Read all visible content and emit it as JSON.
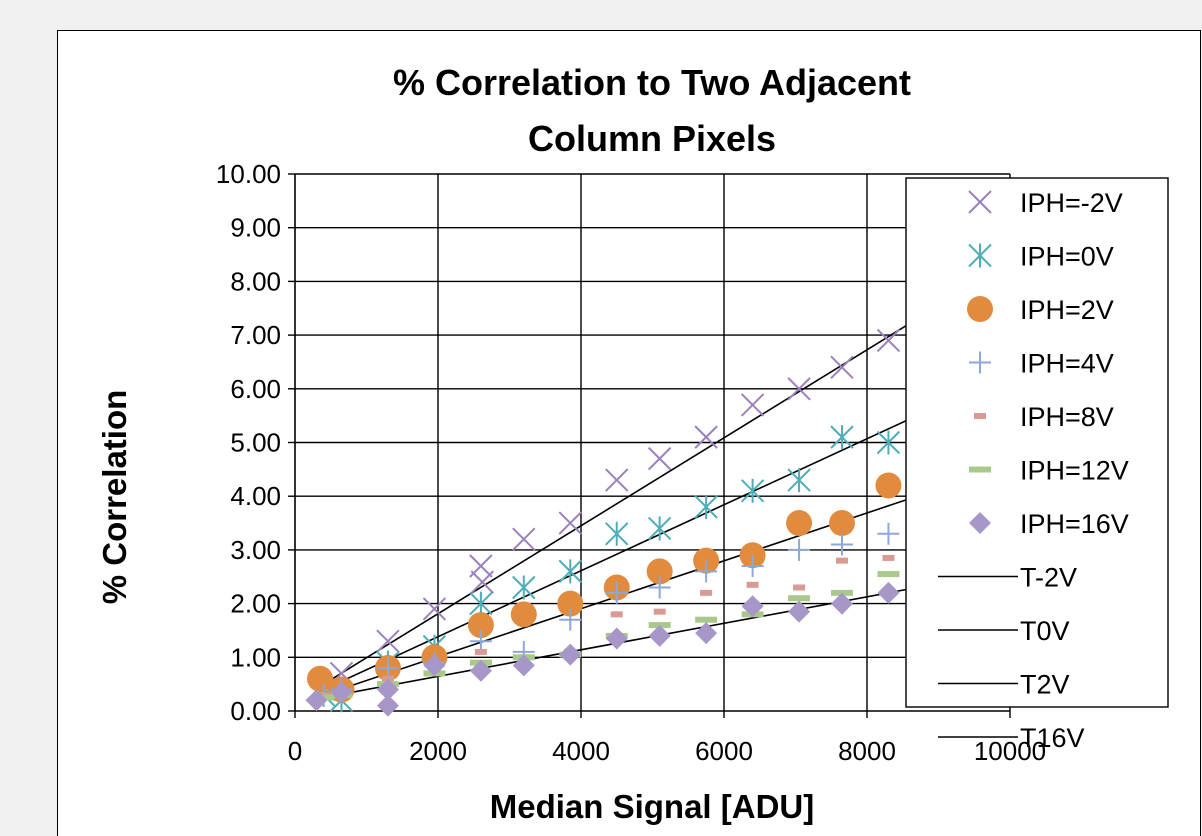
{
  "chart_data": {
    "type": "scatter",
    "title_lines": [
      "% Correlation to Two Adjacent",
      "Column Pixels"
    ],
    "xlabel": "Median Signal [ADU]",
    "ylabel": "% Correlation",
    "xlim": [
      0,
      10000
    ],
    "ylim": [
      0,
      10
    ],
    "x_ticks": [
      "0",
      "2000",
      "4000",
      "6000",
      "8000",
      "10000"
    ],
    "y_ticks": [
      "0.00",
      "1.00",
      "2.00",
      "3.00",
      "4.00",
      "5.00",
      "6.00",
      "7.00",
      "8.00",
      "9.00",
      "10.00"
    ],
    "grid": true,
    "legend_position": "right",
    "series": [
      {
        "name": "IPH=-2V",
        "marker": "x",
        "color": "#9b82bd",
        "x": [
          400,
          650,
          1300,
          1950,
          2600,
          2620,
          3200,
          3850,
          4500,
          5100,
          5750,
          6400,
          7050,
          7650,
          8300
        ],
        "y": [
          0.4,
          0.7,
          1.3,
          1.9,
          2.7,
          2.4,
          3.2,
          3.5,
          4.3,
          4.7,
          5.1,
          5.7,
          6.0,
          6.4,
          6.9
        ]
      },
      {
        "name": "IPH=0V",
        "marker": "asterisk",
        "color": "#4fadb7",
        "x": [
          400,
          650,
          1300,
          1950,
          2600,
          3200,
          3850,
          4500,
          5100,
          5750,
          6400,
          7050,
          7650,
          8300
        ],
        "y": [
          0.3,
          0.2,
          0.9,
          1.2,
          2.0,
          2.3,
          2.6,
          3.3,
          3.4,
          3.8,
          4.1,
          4.3,
          5.1,
          5.0
        ]
      },
      {
        "name": "IPH=2V",
        "marker": "circle",
        "color": "#e08b3e",
        "x": [
          350,
          650,
          1300,
          1950,
          2600,
          3200,
          3850,
          4500,
          5100,
          5750,
          6400,
          7050,
          7650,
          8300
        ],
        "y": [
          0.6,
          0.4,
          0.8,
          1.0,
          1.6,
          1.8,
          2.0,
          2.3,
          2.6,
          2.8,
          2.9,
          3.5,
          3.5,
          4.2
        ]
      },
      {
        "name": "IPH=4V",
        "marker": "plus",
        "color": "#8ea6d8",
        "x": [
          400,
          650,
          1300,
          1950,
          2600,
          3200,
          3850,
          4500,
          5100,
          5750,
          6400,
          7050,
          7650,
          8300
        ],
        "y": [
          0.3,
          0.4,
          0.8,
          0.9,
          1.3,
          1.1,
          1.7,
          2.2,
          2.3,
          2.6,
          2.7,
          3.0,
          3.1,
          3.3
        ]
      },
      {
        "name": "IPH=8V",
        "marker": "dash",
        "color": "#d99a94",
        "x": [
          400,
          650,
          1300,
          1950,
          2600,
          3200,
          3850,
          4500,
          5100,
          5750,
          6400,
          7050,
          7650,
          8300
        ],
        "y": [
          0.3,
          0.4,
          0.6,
          0.8,
          1.1,
          1.0,
          1.1,
          1.8,
          1.85,
          2.2,
          2.35,
          2.3,
          2.8,
          2.85
        ]
      },
      {
        "name": "IPH=12V",
        "marker": "bar",
        "color": "#a9c98a",
        "x": [
          400,
          650,
          1300,
          1950,
          2600,
          3200,
          3850,
          4500,
          5100,
          5750,
          6400,
          7050,
          7650,
          8300
        ],
        "y": [
          0.25,
          0.3,
          0.5,
          0.7,
          0.9,
          1.0,
          1.05,
          1.4,
          1.6,
          1.7,
          1.8,
          2.1,
          2.2,
          2.55
        ]
      },
      {
        "name": "IPH=16V",
        "marker": "diamond",
        "color": "#a796c8",
        "x": [
          300,
          650,
          1300,
          1300,
          1950,
          2600,
          3200,
          3850,
          4500,
          5100,
          5750,
          6400,
          7050,
          7650,
          8300
        ],
        "y": [
          0.2,
          0.35,
          0.4,
          0.1,
          0.85,
          0.75,
          0.85,
          1.05,
          1.35,
          1.4,
          1.45,
          1.95,
          1.85,
          2.0,
          2.2
        ]
      }
    ],
    "trendlines": [
      {
        "name": "T-2V",
        "color": "#000000",
        "x": [
          400,
          8700
        ],
        "y": [
          0.5,
          7.3
        ]
      },
      {
        "name": "T0V",
        "color": "#000000",
        "x": [
          400,
          8700
        ],
        "y": [
          0.4,
          5.5
        ]
      },
      {
        "name": "T2V",
        "color": "#000000",
        "x": [
          400,
          8700
        ],
        "y": [
          0.3,
          4.0
        ]
      },
      {
        "name": "T16V",
        "color": "#000000",
        "x": [
          400,
          8700
        ],
        "y": [
          0.25,
          2.3
        ]
      }
    ]
  }
}
